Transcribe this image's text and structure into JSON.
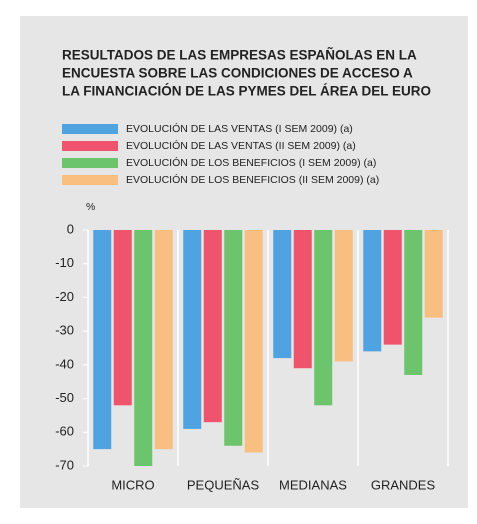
{
  "chart_data": {
    "type": "bar",
    "title": [
      "RESULTADOS DE LAS EMPRESAS ESPAÑOLAS EN LA",
      "ENCUESTA SOBRE LAS CONDICIONES DE ACCESO A",
      "LA FINANCIACIÓN DE LAS PYMES DEL ÁREA DEL EURO"
    ],
    "y_label": "%",
    "categories": [
      "MICRO",
      "PEQUEÑAS",
      "MEDIANAS",
      "GRANDES"
    ],
    "series": [
      {
        "name": "EVOLUCIÓN DE LAS VENTAS (I SEM 2009) (a)",
        "color": "#4fa3e0",
        "values": [
          -65,
          -59,
          -38,
          -36
        ]
      },
      {
        "name": "EVOLUCIÓN DE LAS VENTAS (II SEM 2009) (a)",
        "color": "#f0546c",
        "values": [
          -52,
          -57,
          -41,
          -34
        ]
      },
      {
        "name": "EVOLUCIÓN DE LOS BENEFICIOS (I SEM 2009) (a)",
        "color": "#6cc46c",
        "values": [
          -70,
          -64,
          -52,
          -43
        ]
      },
      {
        "name": "EVOLUCIÓN DE LOS BENEFICIOS (II SEM 2009) (a)",
        "color": "#f8bf80",
        "values": [
          -65,
          -66,
          -39,
          -26
        ]
      }
    ],
    "ylim": [
      -70,
      0
    ],
    "yticks": [
      0,
      -10,
      -20,
      -30,
      -40,
      -50,
      -60,
      -70
    ]
  }
}
